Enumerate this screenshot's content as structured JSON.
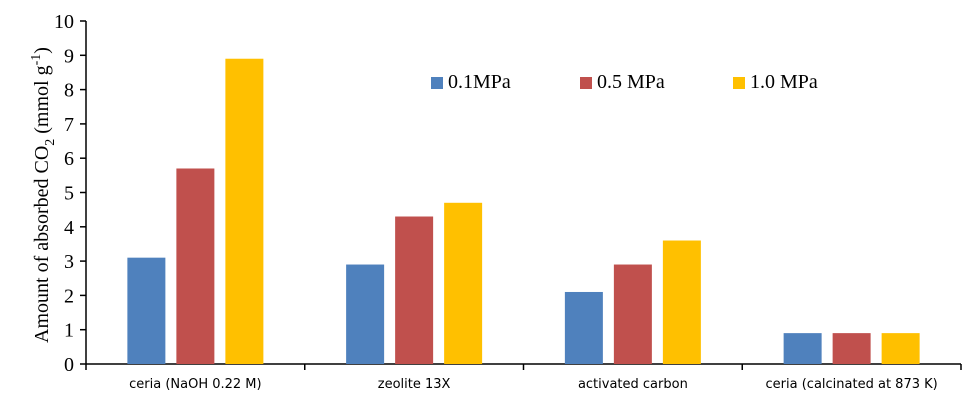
{
  "chart_data": {
    "type": "bar",
    "categories": [
      "ceria (NaOH 0.22 M)",
      "zeolite 13X",
      "activated carbon",
      "ceria (calcinated at 873 K)"
    ],
    "series": [
      {
        "name": "0.1MPa",
        "color": "#4f81bd",
        "values": [
          3.1,
          2.9,
          2.1,
          0.9
        ]
      },
      {
        "name": "0.5 MPa",
        "color": "#c0504d",
        "values": [
          5.7,
          4.3,
          2.9,
          0.9
        ]
      },
      {
        "name": "1.0 MPa",
        "color": "#ffc000",
        "values": [
          8.9,
          4.7,
          3.6,
          0.9
        ]
      }
    ],
    "ylabel": {
      "prefix": "Amount of absorbed CO",
      "sub": "2",
      "mid": " (mmol g",
      "sup": "-1",
      "suffix": ")"
    },
    "ylim": [
      0,
      10
    ],
    "yticks": [
      "0",
      "1",
      "2",
      "3",
      "4",
      "5",
      "6",
      "7",
      "8",
      "9",
      "10"
    ],
    "legend_position": "top-right",
    "grid": false
  }
}
